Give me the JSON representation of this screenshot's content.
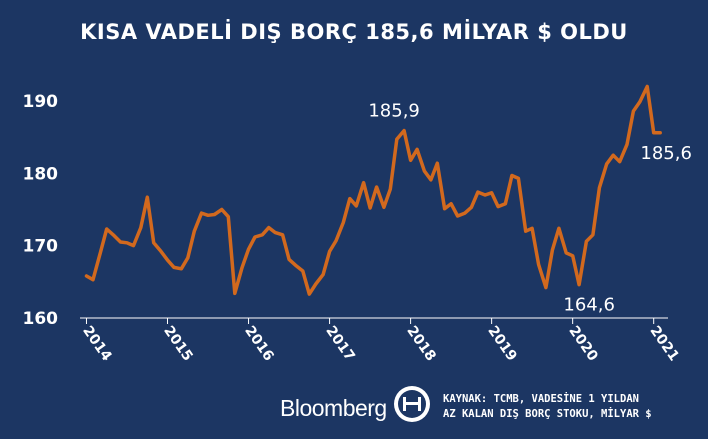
{
  "chart_data": {
    "type": "line",
    "title": "KISA VADELİ DIŞ BORÇ 185,6 MİLYAR $ OLDU",
    "ylim": [
      160,
      194
    ],
    "yticks": [
      160,
      170,
      180,
      190
    ],
    "xlim": [
      2013.92,
      2021.3
    ],
    "xtick_labels": [
      "2014",
      "2015",
      "2016",
      "2017",
      "2018",
      "2019",
      "2020",
      "2021"
    ],
    "grid": false,
    "line_color": "#d2691e",
    "series": [
      {
        "x": [
          2014.0,
          2014.08,
          2014.17,
          2014.25,
          2014.33,
          2014.42,
          2014.5,
          2014.58,
          2014.67,
          2014.75,
          2014.83,
          2014.92,
          2015.0,
          2015.08,
          2015.17,
          2015.25,
          2015.33,
          2015.42,
          2015.5,
          2015.58,
          2015.67,
          2015.75,
          2015.83,
          2015.92,
          2016.0,
          2016.08,
          2016.17,
          2016.25,
          2016.33,
          2016.42,
          2016.5,
          2016.58,
          2016.67,
          2016.75,
          2016.83,
          2016.92,
          2017.0,
          2017.08,
          2017.17,
          2017.25,
          2017.33,
          2017.42,
          2017.5,
          2017.58,
          2017.67,
          2017.75,
          2017.83,
          2017.92,
          2018.0,
          2018.08,
          2018.17,
          2018.25,
          2018.33,
          2018.42,
          2018.5,
          2018.58,
          2018.67,
          2018.75,
          2018.83,
          2018.92,
          2019.0,
          2019.08,
          2019.17,
          2019.25,
          2019.33,
          2019.42,
          2019.5,
          2019.58,
          2019.67,
          2019.75,
          2019.83,
          2019.92,
          2020.0,
          2020.08,
          2020.17,
          2020.25,
          2020.33,
          2020.42,
          2020.5,
          2020.58,
          2020.67,
          2020.75,
          2020.83,
          2020.92,
          2021.0,
          2021.08
        ],
        "values": [
          165.8,
          165.3,
          169.0,
          172.3,
          171.5,
          170.5,
          170.4,
          170.0,
          172.5,
          176.7,
          170.4,
          169.2,
          168.0,
          167.0,
          166.8,
          168.3,
          172.0,
          174.5,
          174.2,
          174.3,
          175.0,
          174.0,
          163.4,
          167.0,
          169.5,
          171.2,
          171.5,
          172.5,
          171.8,
          171.5,
          168.1,
          167.3,
          166.5,
          163.3,
          164.7,
          166.0,
          169.2,
          170.7,
          173.2,
          176.5,
          175.5,
          178.7,
          175.2,
          178.1,
          175.3,
          177.8,
          184.7,
          185.9,
          181.8,
          183.3,
          180.3,
          179.1,
          181.4,
          175.1,
          175.8,
          174.1,
          174.5,
          175.3,
          177.4,
          177.0,
          177.3,
          175.4,
          175.8,
          179.7,
          179.3,
          172.0,
          172.4,
          167.4,
          164.2,
          169.4,
          172.4,
          169.0,
          168.6,
          164.6,
          170.6,
          171.5,
          178.0,
          181.3,
          182.5,
          181.6,
          184.0,
          188.6,
          189.9,
          192.0,
          185.6,
          185.6
        ]
      }
    ],
    "annotations": [
      {
        "text": "185,9",
        "x": 2017.92,
        "y": 185.9
      },
      {
        "text": "164,6",
        "x": 2020.08,
        "y": 164.6
      },
      {
        "text": "185,6",
        "x": 2021.08,
        "y": 185.6
      }
    ]
  },
  "footer": {
    "brand": "Bloomberg",
    "source_line1": "KAYNAK: TCMB, VADESİNE 1 YILDAN",
    "source_line2": "AZ KALAN DIŞ BORÇ STOKU, MİLYAR $"
  },
  "colors": {
    "background": "#1c3663",
    "line": "#d2691e",
    "text": "#ffffff"
  }
}
